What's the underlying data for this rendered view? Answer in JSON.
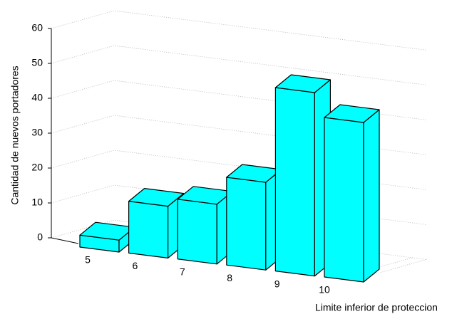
{
  "chart_data": {
    "type": "bar3d",
    "x_label": "Limite inferior de proteccion",
    "y_label": "Cantidad de nuevos portadores",
    "categories": [
      "5",
      "6",
      "7",
      "8",
      "9",
      "10"
    ],
    "values": [
      3,
      13,
      15,
      22,
      46,
      40
    ],
    "color": "#00ffff",
    "ylim": [
      0,
      60
    ],
    "yticks": [
      0,
      10,
      20,
      30,
      40,
      50,
      60
    ],
    "grid": true
  }
}
